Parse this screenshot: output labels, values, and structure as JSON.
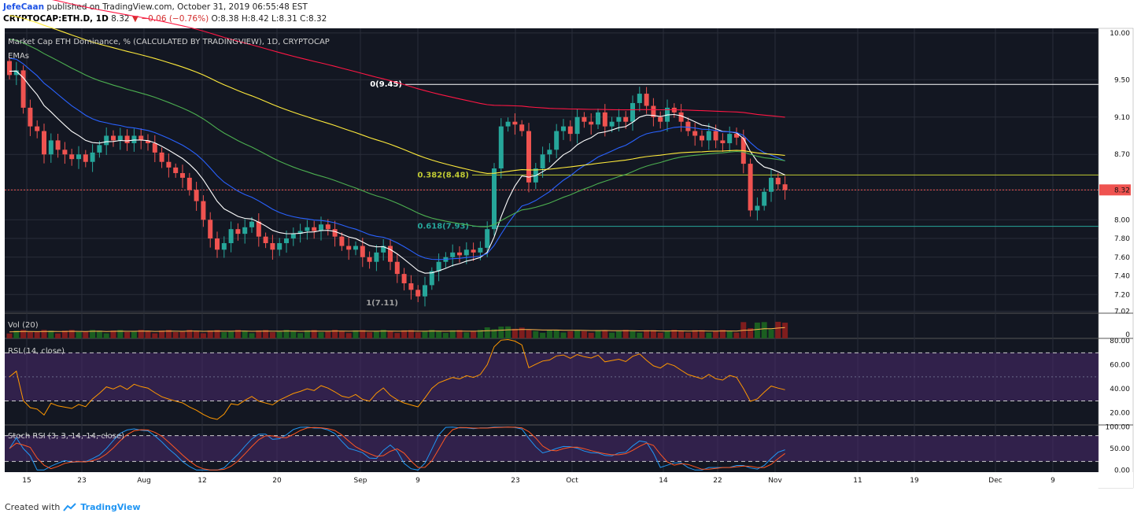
{
  "header": {
    "author": "JefeCaan",
    "published": "published on TradingView.com, October 31, 2019 06:55:48 EST",
    "symbol": "CRYPTOCAP:ETH.D, 1D",
    "price": "8.32",
    "change": "▼ −0.06 (−0.76%)",
    "ohlc": "O:8.38 H:8.42 L:8.31 C:8.32"
  },
  "footer": {
    "created": "Created with",
    "brand": "TradingView"
  },
  "colors": {
    "background": "#131722",
    "up": "#26a69a",
    "down": "#ef5350",
    "ema10": "#ffffff",
    "ema20": "#2962ff",
    "ema50": "#4caf50",
    "ema100": "#ffeb3b",
    "ema200": "#ff1744",
    "rsi": "#ff9800",
    "stoch_k": "#2196f3",
    "stoch_d": "#ff5722",
    "band": "#4a2a6e"
  },
  "chart_data": {
    "type": "candlestick",
    "title": "Market Cap ETH Dominance, % (CALCULATED BY TRADINGVIEW), 1D, CRYPTOCAP",
    "indicator_label": "EMAs",
    "y_ticks": [
      "10.00",
      "9.50",
      "9.10",
      "8.70",
      "8.32",
      "8.00",
      "7.80",
      "7.60",
      "7.40",
      "7.20",
      "7.02"
    ],
    "y_range": [
      7.0,
      10.05
    ],
    "x_ticks": [
      "15",
      "23",
      "Aug",
      "12",
      "20",
      "Sep",
      "9",
      "23",
      "Oct",
      "14",
      "22",
      "Nov",
      "11",
      "19",
      "Dec",
      "9"
    ],
    "last_price": 8.32,
    "close": [
      9.55,
      9.6,
      9.2,
      9.0,
      8.95,
      8.7,
      8.85,
      8.75,
      8.7,
      8.65,
      8.7,
      8.62,
      8.72,
      8.8,
      8.9,
      8.85,
      8.9,
      8.82,
      8.9,
      8.85,
      8.82,
      8.72,
      8.62,
      8.56,
      8.5,
      8.45,
      8.32,
      8.2,
      8.0,
      7.8,
      7.68,
      7.75,
      7.9,
      7.85,
      7.92,
      7.98,
      7.82,
      7.75,
      7.68,
      7.75,
      7.8,
      7.85,
      7.88,
      7.92,
      7.88,
      7.95,
      7.9,
      7.82,
      7.72,
      7.68,
      7.72,
      7.6,
      7.55,
      7.65,
      7.72,
      7.55,
      7.42,
      7.32,
      7.25,
      7.18,
      7.3,
      7.45,
      7.55,
      7.6,
      7.65,
      7.62,
      7.68,
      7.65,
      7.7,
      7.9,
      8.55,
      9.0,
      9.05,
      9.02,
      8.95,
      8.4,
      8.55,
      8.7,
      8.75,
      8.95,
      9.0,
      8.92,
      9.1,
      9.05,
      9.02,
      9.15,
      9.0,
      9.05,
      9.1,
      9.05,
      9.25,
      9.35,
      9.22,
      9.1,
      9.05,
      9.2,
      9.15,
      9.05,
      8.95,
      8.9,
      8.85,
      8.95,
      8.85,
      8.82,
      8.92,
      8.88,
      8.6,
      8.1,
      8.15,
      8.3,
      8.45,
      8.38,
      8.32
    ],
    "fib_levels": [
      {
        "label": "0(9.45)",
        "value": 9.45
      },
      {
        "label": "0.382(8.48)",
        "value": 8.48
      },
      {
        "label": "0.618(7.93)",
        "value": 7.93
      },
      {
        "label": "1(7.11)",
        "value": 7.11
      }
    ],
    "volume": {
      "label": "Vol (20)",
      "y_ticks": [
        "0"
      ]
    },
    "rsi": {
      "label": "RSI (14, close)",
      "y_ticks": [
        "80.00",
        "60.00",
        "40.00",
        "20.00"
      ],
      "range": [
        10,
        82
      ],
      "band": [
        30,
        70
      ]
    },
    "stoch": {
      "label": "Stoch RSI (3, 3, 14, 14, close)",
      "y_ticks": [
        "100.00",
        "50.00",
        "0.00"
      ],
      "range": [
        -5,
        105
      ],
      "band": [
        20,
        80
      ]
    }
  }
}
